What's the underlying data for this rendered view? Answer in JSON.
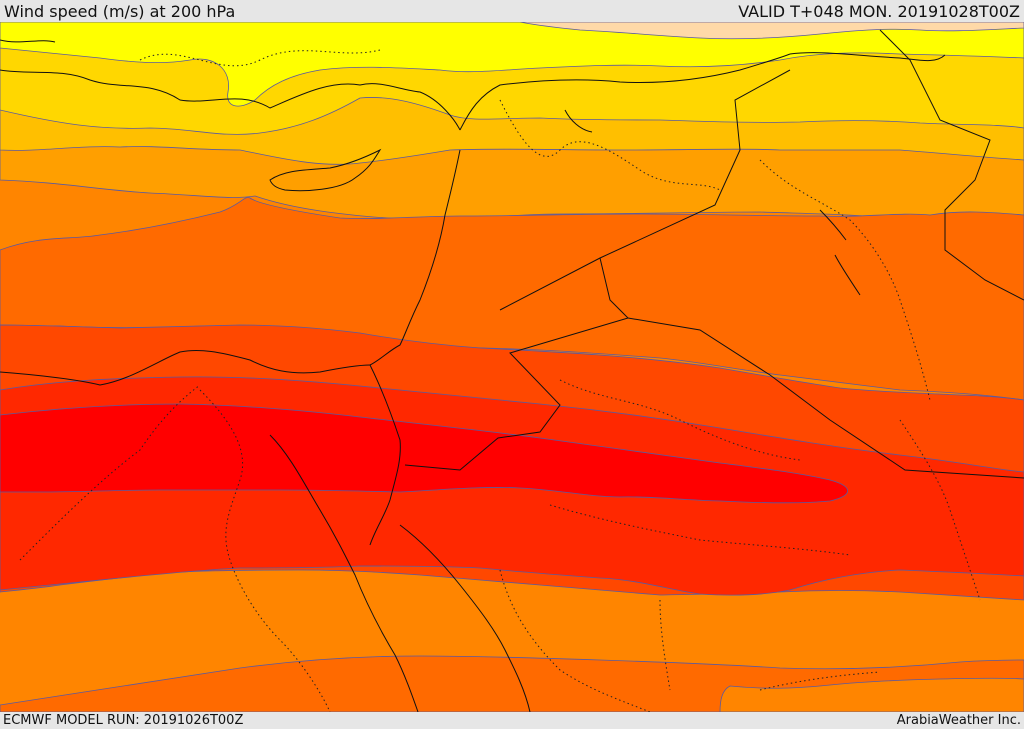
{
  "header": {
    "title": "Wind speed (m/s) at 200 hPa",
    "valid_time": "VALID T+048 MON. 20191028T00Z"
  },
  "footer": {
    "model_run": "ECMWF MODEL RUN: 20191026T00Z",
    "credit": "ArabiaWeather Inc."
  },
  "map": {
    "field": "wind speed at 200 hPa",
    "colors": {
      "band_1": "#ffd9a8",
      "band_2": "#ffff00",
      "band_3": "#ffd700",
      "band_4": "#ffbf00",
      "band_5": "#ff9f00",
      "band_6": "#ff8500",
      "band_7": "#ff6a00",
      "band_8": "#ff4800",
      "band_9": "#ff2800",
      "band_10": "#ff0000",
      "contour_line": "#5a5aa0",
      "border_line": "#111111"
    }
  }
}
